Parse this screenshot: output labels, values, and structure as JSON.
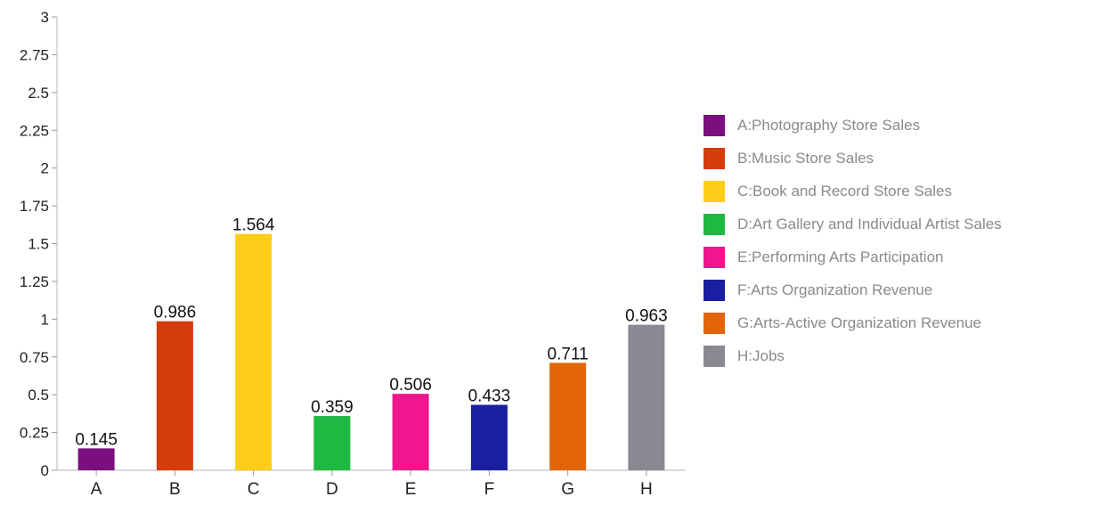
{
  "chart_data": {
    "type": "bar",
    "categories": [
      "A",
      "B",
      "C",
      "D",
      "E",
      "F",
      "G",
      "H"
    ],
    "values": [
      0.145,
      0.986,
      1.564,
      0.359,
      0.506,
      0.433,
      0.711,
      0.963
    ],
    "value_labels": [
      "0.145",
      "0.986",
      "1.564",
      "0.359",
      "0.506",
      "0.433",
      "0.711",
      "0.963"
    ],
    "colors": [
      "#7b0f7e",
      "#d43c0c",
      "#fdcd1a",
      "#1eb843",
      "#f0168e",
      "#1a1fa0",
      "#e3650a",
      "#8a8891"
    ],
    "ylim": [
      0,
      3
    ],
    "yticks": [
      0,
      0.25,
      0.5,
      0.75,
      1,
      1.25,
      1.5,
      1.75,
      2,
      2.25,
      2.5,
      2.75,
      3
    ],
    "ytick_labels": [
      "0",
      "0.25",
      "0.5",
      "0.75",
      "1",
      "1.25",
      "1.5",
      "1.75",
      "2",
      "2.25",
      "2.5",
      "2.75",
      "3"
    ],
    "title": "",
    "xlabel": "",
    "ylabel": "",
    "grid": false,
    "legend_position": "right",
    "legend": [
      "A:Photography Store Sales",
      "B:Music Store Sales",
      "C:Book and Record Store Sales",
      "D:Art Gallery and Individual Artist Sales",
      "E:Performing Arts Participation",
      "F:Arts Organization Revenue",
      "G:Arts-Active Organization Revenue",
      "H:Jobs"
    ]
  }
}
